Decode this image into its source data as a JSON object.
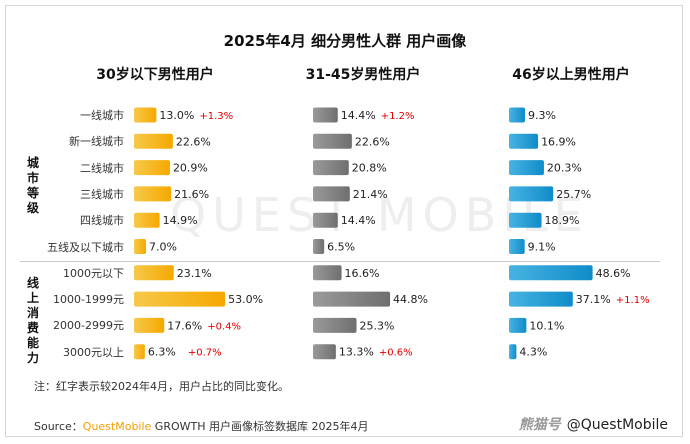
{
  "title": "2025年4月 细分男性人群 用户画像",
  "watermark": "QUEST MOBILE",
  "note": "注：红字表示较2024年4月，用户占比的同比变化。",
  "source": {
    "prefix": "Source：",
    "brand": "QuestMobile",
    "rest": " GROWTH 用户画像标签数据库 2025年4月"
  },
  "brand_watermark": {
    "left": "熊猫号",
    "right": "@QuestMobile"
  },
  "group_labels": [
    "城市等级",
    "线上消费能力"
  ],
  "colors": {
    "yellow": "#f7b500",
    "gray": "#808080",
    "blue": "#1a9ad6",
    "change": "#e00000"
  },
  "chart_data": {
    "type": "bar",
    "categories": [
      "一线城市",
      "新一线城市",
      "二线城市",
      "三线城市",
      "四线城市",
      "五线及以下城市",
      "1000元以下",
      "1000-1999元",
      "2000-2999元",
      "3000元以上"
    ],
    "series": [
      {
        "name": "30岁以下男性用户",
        "values": [
          13.0,
          22.6,
          20.9,
          21.6,
          14.9,
          7.0,
          23.1,
          53.0,
          17.6,
          6.3
        ],
        "labels": [
          "13.0%",
          "22.6%",
          "20.9%",
          "21.6%",
          "14.9%",
          "7.0%",
          "23.1%",
          "53.0%",
          "17.6%",
          "6.3%"
        ],
        "changes": [
          "+1.3%",
          "",
          "",
          "",
          "",
          "",
          "",
          "",
          "+0.4%",
          "+0.7%"
        ]
      },
      {
        "name": "31-45岁男性用户",
        "values": [
          14.4,
          22.6,
          20.8,
          21.4,
          14.4,
          6.5,
          16.6,
          44.8,
          25.3,
          13.3
        ],
        "labels": [
          "14.4%",
          "22.6%",
          "20.8%",
          "21.4%",
          "14.4%",
          "6.5%",
          "16.6%",
          "44.8%",
          "25.3%",
          "13.3%"
        ],
        "changes": [
          "+1.2%",
          "",
          "",
          "",
          "",
          "",
          "",
          "",
          "",
          "+0.6%"
        ]
      },
      {
        "name": "46岁以上男性用户",
        "values": [
          9.3,
          16.9,
          20.3,
          25.7,
          18.9,
          9.1,
          48.6,
          37.1,
          10.1,
          4.3
        ],
        "labels": [
          "9.3%",
          "16.9%",
          "20.3%",
          "25.7%",
          "18.9%",
          "9.1%",
          "48.6%",
          "37.1%",
          "10.1%",
          "4.3%"
        ],
        "changes": [
          "",
          "",
          "",
          "",
          "",
          "",
          "",
          "+1.1%",
          "",
          ""
        ]
      }
    ],
    "groups": [
      {
        "name": "城市等级",
        "categories": [
          "一线城市",
          "新一线城市",
          "二线城市",
          "三线城市",
          "四线城市",
          "五线及以下城市"
        ]
      },
      {
        "name": "线上消费能力",
        "categories": [
          "1000元以下",
          "1000-1999元",
          "2000-2999元",
          "3000元以上"
        ]
      }
    ]
  }
}
